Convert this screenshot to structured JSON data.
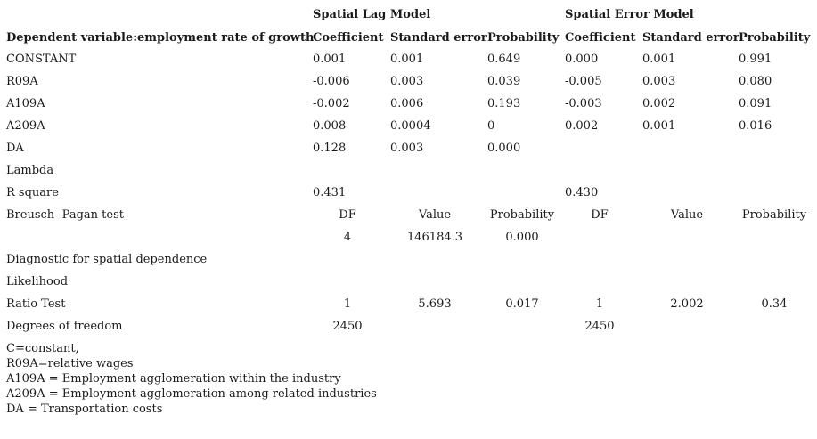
{
  "model_headers": {
    "lag": "Spatial Lag Model",
    "error": "Spatial Error Model"
  },
  "column_headers": {
    "dependent": "Dependent variable:employment rate of growth",
    "lag_coef": "Coefficient",
    "lag_se": "Standard error",
    "lag_prob": "Probability",
    "err_coef": "Coefficient",
    "err_se": "Standard error",
    "err_prob": "Probability"
  },
  "rows": [
    {
      "label": "CONSTANT",
      "lag_coef": "0.001",
      "lag_se": "0.001",
      "lag_prob": "0.649",
      "err_coef": "0.000",
      "err_se": "0.001",
      "err_prob": "0.991"
    },
    {
      "label": "R09A",
      "lag_coef": "-0.006",
      "lag_se": "0.003",
      "lag_prob": "0.039",
      "err_coef": "-0.005",
      "err_se": "0.003",
      "err_prob": "0.080"
    },
    {
      "label": "A109A",
      "lag_coef": "-0.002",
      "lag_se": "0.006",
      "lag_prob": "0.193",
      "err_coef": "-0.003",
      "err_se": "0.002",
      "err_prob": "0.091"
    },
    {
      "label": "A209A",
      "lag_coef": "0.008",
      "lag_se": "0.0004",
      "lag_prob": "0",
      "err_coef": "0.002",
      "err_se": "0.001",
      "err_prob": "0.016"
    },
    {
      "label": "DA",
      "lag_coef": "0.128",
      "lag_se": "0.003",
      "lag_prob": "0.000",
      "err_coef": "",
      "err_se": "",
      "err_prob": ""
    },
    {
      "label": "Lambda",
      "lag_coef": "",
      "lag_se": "",
      "lag_prob": "",
      "err_coef": "",
      "err_se": "",
      "err_prob": ""
    },
    {
      "label": "R square",
      "lag_coef": "0.431",
      "lag_se": "",
      "lag_prob": "",
      "err_coef": "0.430",
      "err_se": "",
      "err_prob": ""
    }
  ],
  "bp_test": {
    "label": "Breusch- Pagan test",
    "lag_df_h": "DF",
    "lag_val_h": "Value",
    "lag_prob_h": "Probability",
    "err_df_h": "DF",
    "err_val_h": "Value",
    "err_prob_h": "Probability",
    "lag_df": "4",
    "lag_val": "146184.3",
    "lag_prob": "0.000"
  },
  "diagnostics": {
    "title": "Diagnostic for spatial dependence",
    "likelihood": "Likelihood",
    "ratio_label": "Ratio Test",
    "lag_df": "1",
    "lag_val": "5.693",
    "lag_prob": "0.017",
    "err_df": "1",
    "err_val": "2.002",
    "err_prob": "0.34",
    "dof_label": "Degrees of freedom",
    "lag_dof": "2450",
    "err_dof": "2450"
  },
  "notes": [
    "C=constant,",
    "R09A=relative wages",
    "A109A = Employment agglomeration within the industry",
    "A209A = Employment agglomeration among related industries",
    "DA = Transportation costs"
  ]
}
